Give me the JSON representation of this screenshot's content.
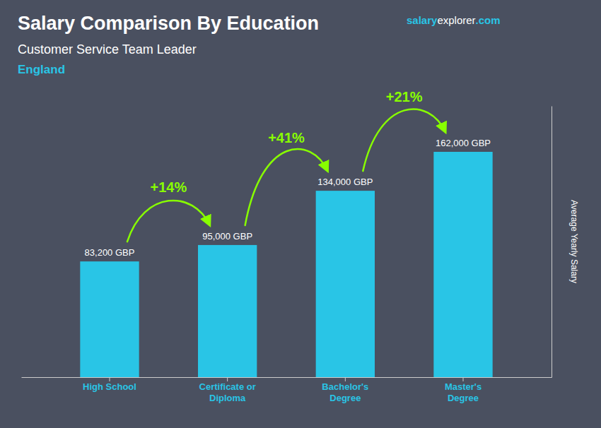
{
  "chart_data": {
    "type": "bar",
    "title": "Salary Comparison By Education",
    "subtitle": [
      "Customer Service Team Leader",
      "England"
    ],
    "website": [
      "salary",
      "explorer",
      ".com"
    ],
    "categories": [
      "High School",
      "Certificate or\nDiploma",
      "Bachelor's\nDegree",
      "Master's\nDegree"
    ],
    "values": [
      83200,
      95000,
      134000,
      162000
    ],
    "value_labels": [
      "83,200 GBP",
      "95,000 GBP",
      "134,000 GBP",
      "162,000 GBP"
    ],
    "data_labels": true,
    "color": "#29c5e6",
    "ylabel": "Average Yearly Salary",
    "ylim": [
      0,
      195000
    ],
    "tick_labels": "x",
    "annotations": [
      {
        "text": "+14%",
        "color": "#88ff00"
      },
      {
        "text": "+41%",
        "color": "#88ff00"
      },
      {
        "text": "+21%",
        "color": "#88ff00"
      }
    ]
  }
}
